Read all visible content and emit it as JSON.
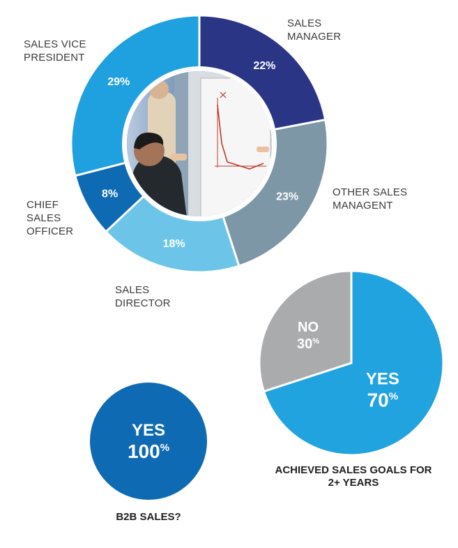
{
  "colors": {
    "sales_manager": "#2a3586",
    "other_sales_management": "#7d97a7",
    "sales_director": "#6cc5e8",
    "chief_sales_officer": "#0e6ab2",
    "sales_vice_president": "#1fa0df",
    "goals_yes": "#21a3e0",
    "goals_no": "#aaabad",
    "b2b_yes": "#0e6ab2",
    "text_dark": "#3a3a3a",
    "white": "#ffffff"
  },
  "center_photo": {
    "description_icon": "office-meeting-photo"
  },
  "chart_data": [
    {
      "type": "pie",
      "variant": "donut",
      "title": "",
      "slices": [
        {
          "label": "SALES MANAGER",
          "value": 22,
          "value_label": "22%"
        },
        {
          "label": "OTHER SALES MANAGENT",
          "value": 23,
          "value_label": "23%"
        },
        {
          "label": "SALES DIRECTOR",
          "value": 18,
          "value_label": "18%"
        },
        {
          "label": "CHIEF SALES OFFICER",
          "value": 8,
          "value_label": "8%"
        },
        {
          "label": "SALES VICE PRESIDENT",
          "value": 29,
          "value_label": "29%"
        }
      ]
    },
    {
      "type": "pie",
      "title": "ACHIEVED SALES GOALS FOR 2+ YEARS",
      "slices": [
        {
          "label": "NO",
          "value": 30,
          "value_label": "30",
          "unit": "%"
        },
        {
          "label": "YES",
          "value": 70,
          "value_label": "70",
          "unit": "%"
        }
      ]
    },
    {
      "type": "pie",
      "title": "B2B SALES?",
      "slices": [
        {
          "label": "YES",
          "value": 100,
          "value_label": "100",
          "unit": "%"
        }
      ]
    }
  ]
}
